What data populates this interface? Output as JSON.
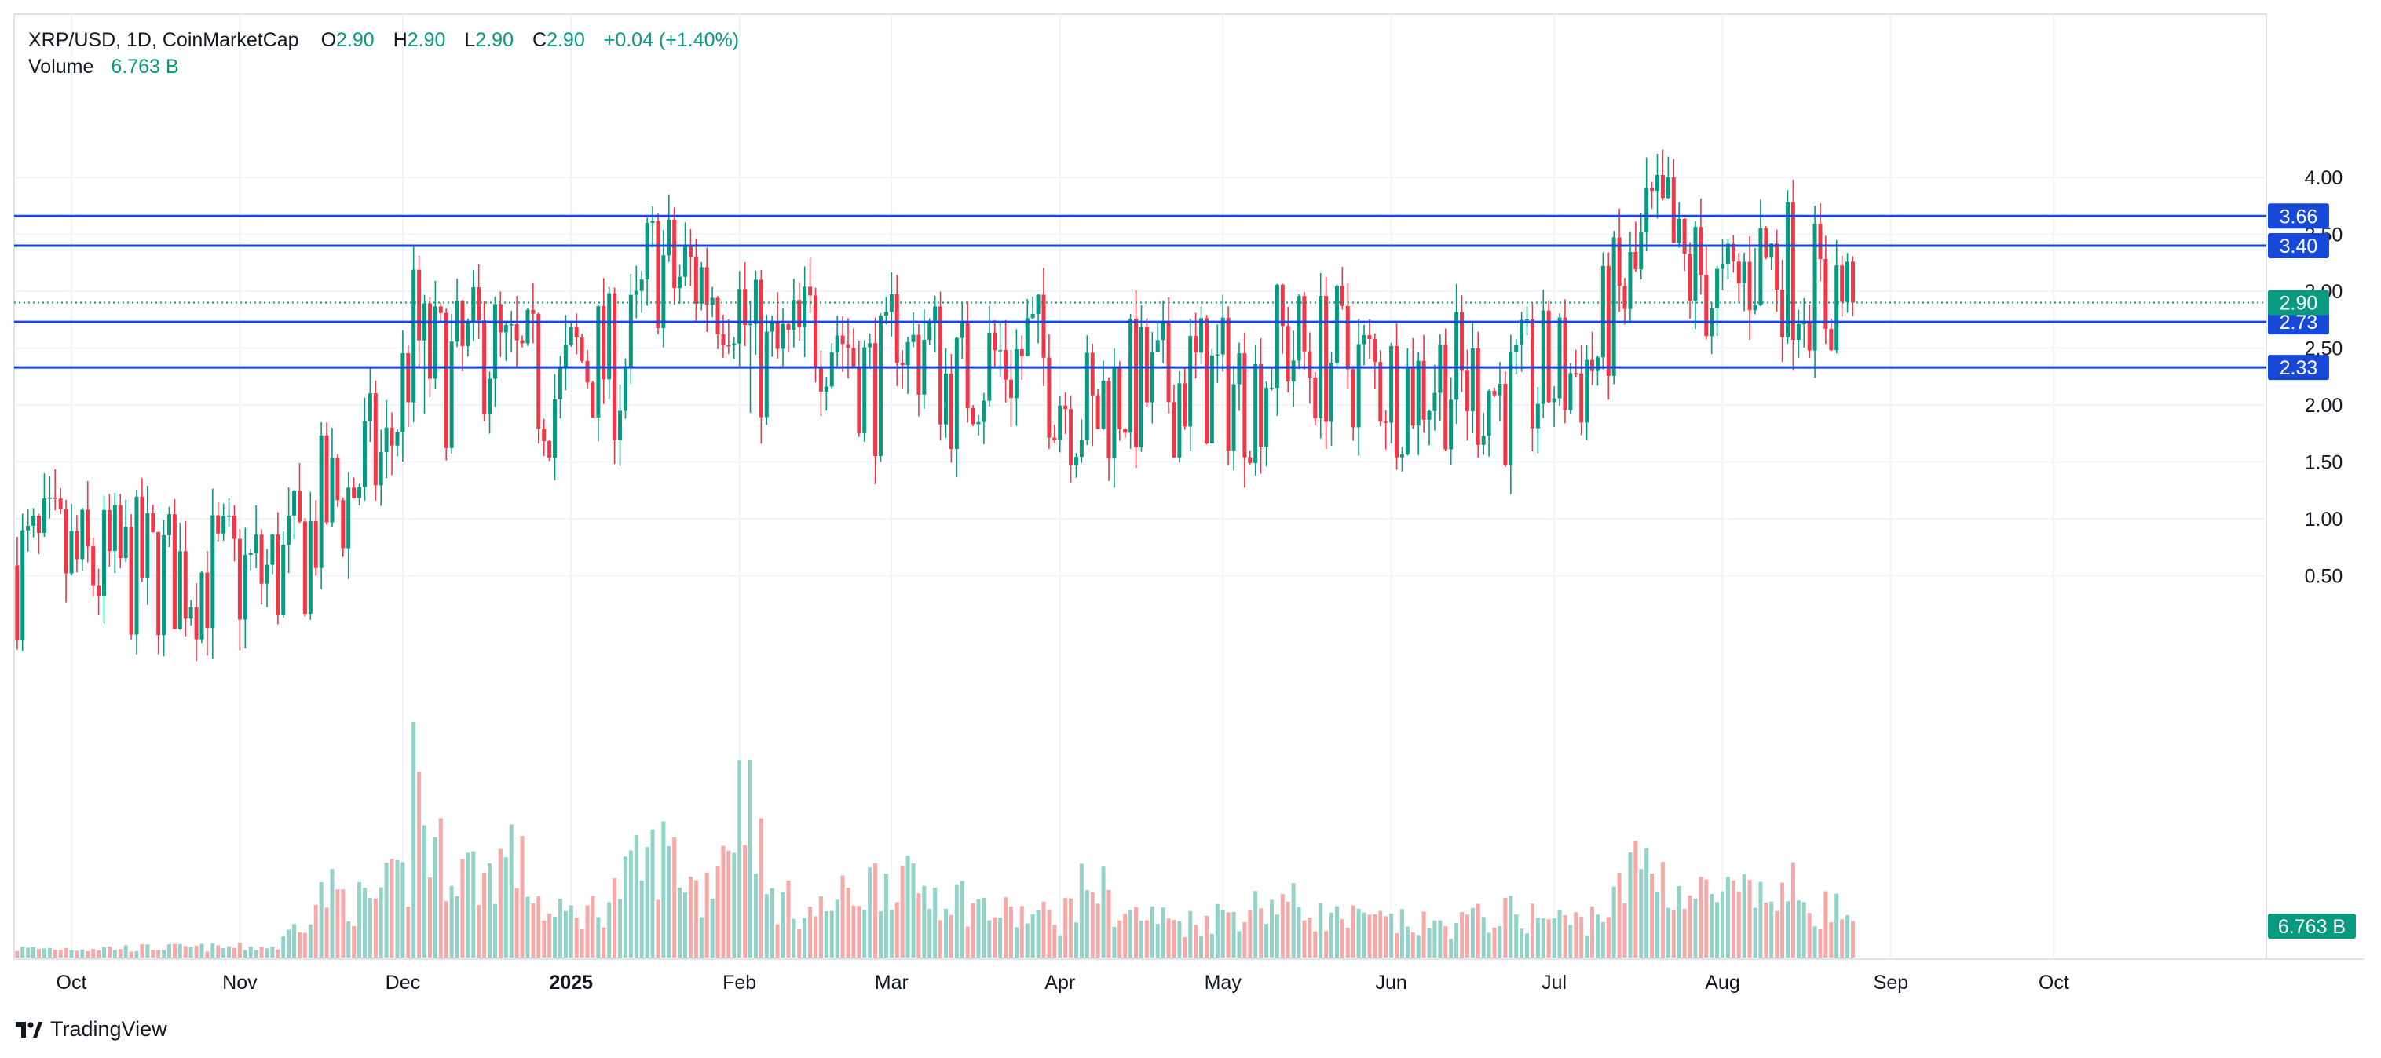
{
  "legend": {
    "symbol": "XRP/USD, 1D, CoinMarketCap",
    "o_label": "O",
    "o_value": "2.90",
    "h_label": "H",
    "h_value": "2.90",
    "l_label": "L",
    "l_value": "2.90",
    "c_label": "C",
    "c_value": "2.90",
    "change": "+0.04 (+1.40%)",
    "volume_label": "Volume",
    "volume_value": "6.763 B"
  },
  "brand": {
    "name": "TradingView",
    "icon": "tradingview-logo-icon"
  },
  "colors": {
    "up": "#089981",
    "down": "#f23645",
    "up_volume": "#92d2c8",
    "down_volume": "#f7a9a7",
    "level_line": "#1848d8",
    "grid": "#f0f3fa"
  },
  "chart_data": {
    "type": "candlestick",
    "title": "XRP/USD, 1D, CoinMarketCap",
    "x_axis": {
      "labels": [
        {
          "text": "Oct",
          "date": "2024-10-01",
          "bold": false
        },
        {
          "text": "Nov",
          "date": "2024-11-01",
          "bold": false
        },
        {
          "text": "Dec",
          "date": "2024-12-01",
          "bold": false
        },
        {
          "text": "2025",
          "date": "2025-01-01",
          "bold": true
        },
        {
          "text": "Feb",
          "date": "2025-02-01",
          "bold": false
        },
        {
          "text": "Mar",
          "date": "2025-03-01",
          "bold": false
        },
        {
          "text": "Apr",
          "date": "2025-04-01",
          "bold": false
        },
        {
          "text": "May",
          "date": "2025-05-01",
          "bold": false
        },
        {
          "text": "Jun",
          "date": "2025-06-01",
          "bold": false
        },
        {
          "text": "Jul",
          "date": "2025-07-01",
          "bold": false
        },
        {
          "text": "Aug",
          "date": "2025-08-01",
          "bold": false
        },
        {
          "text": "Sep",
          "date": "2025-09-01",
          "bold": false
        },
        {
          "text": "Oct",
          "date": "2025-10-01",
          "bold": false
        }
      ],
      "range": [
        "2024-09-21",
        "2025-10-28"
      ]
    },
    "y_axis": {
      "ticks": [
        "0.50",
        "1.00",
        "1.50",
        "2.00",
        "2.50",
        "3.00",
        "3.50",
        "4.00"
      ],
      "range": [
        0.1,
        4.2
      ],
      "position": "right"
    },
    "horizontal_levels": [
      "3.66",
      "3.40",
      "2.73",
      "2.33"
    ],
    "last_price": "2.90",
    "volume_last": "6.763 B",
    "grid": true,
    "price_anchors": [
      [
        "2024-09-21",
        0.59
      ],
      [
        "2024-09-29",
        0.64
      ],
      [
        "2024-10-03",
        0.54
      ],
      [
        "2024-10-15",
        0.54
      ],
      [
        "2024-10-25",
        0.53
      ],
      [
        "2024-11-05",
        0.5
      ],
      [
        "2024-11-09",
        0.56
      ],
      [
        "2024-11-13",
        0.72
      ],
      [
        "2024-11-16",
        1.08
      ],
      [
        "2024-11-21",
        1.2
      ],
      [
        "2024-11-24",
        1.49
      ],
      [
        "2024-11-28",
        1.5
      ],
      [
        "2024-11-30",
        1.95
      ],
      [
        "2024-12-03",
        2.64
      ],
      [
        "2024-12-05",
        2.4
      ],
      [
        "2024-12-07",
        2.34
      ],
      [
        "2024-12-09",
        2.28
      ],
      [
        "2024-12-12",
        2.35
      ],
      [
        "2024-12-17",
        2.56
      ],
      [
        "2024-12-20",
        2.3
      ],
      [
        "2024-12-25",
        2.22
      ],
      [
        "2024-12-30",
        2.06
      ],
      [
        "2025-01-02",
        2.4
      ],
      [
        "2025-01-06",
        2.38
      ],
      [
        "2025-01-10",
        2.28
      ],
      [
        "2025-01-13",
        2.58
      ],
      [
        "2025-01-15",
        3.12
      ],
      [
        "2025-01-17",
        3.28
      ],
      [
        "2025-01-20",
        3.08
      ],
      [
        "2025-01-23",
        3.15
      ],
      [
        "2025-01-26",
        3.1
      ],
      [
        "2025-01-31",
        3.04
      ],
      [
        "2025-02-03",
        2.55
      ],
      [
        "2025-02-06",
        2.35
      ],
      [
        "2025-02-10",
        2.42
      ],
      [
        "2025-02-13",
        2.56
      ],
      [
        "2025-02-15",
        2.72
      ],
      [
        "2025-02-19",
        2.7
      ],
      [
        "2025-02-21",
        2.55
      ],
      [
        "2025-02-25",
        2.2
      ],
      [
        "2025-02-28",
        2.18
      ],
      [
        "2025-03-02",
        2.88
      ],
      [
        "2025-03-04",
        2.38
      ],
      [
        "2025-03-07",
        2.62
      ],
      [
        "2025-03-11",
        2.22
      ],
      [
        "2025-03-13",
        2.15
      ],
      [
        "2025-03-16",
        2.33
      ],
      [
        "2025-03-20",
        2.42
      ],
      [
        "2025-03-24",
        2.4
      ],
      [
        "2025-03-26",
        2.51
      ],
      [
        "2025-03-30",
        2.3
      ],
      [
        "2025-04-02",
        2.1
      ],
      [
        "2025-04-06",
        1.95
      ],
      [
        "2025-04-07",
        1.82
      ],
      [
        "2025-04-09",
        2.05
      ],
      [
        "2025-04-13",
        2.15
      ],
      [
        "2025-04-18",
        2.08
      ],
      [
        "2025-04-22",
        2.18
      ],
      [
        "2025-04-25",
        2.25
      ],
      [
        "2025-05-01",
        2.18
      ],
      [
        "2025-05-07",
        2.13
      ],
      [
        "2025-05-09",
        2.36
      ],
      [
        "2025-05-12",
        2.56
      ],
      [
        "2025-05-14",
        2.5
      ],
      [
        "2025-05-17",
        2.38
      ],
      [
        "2025-05-22",
        2.45
      ],
      [
        "2025-05-26",
        2.32
      ],
      [
        "2025-06-01",
        2.2
      ],
      [
        "2025-06-06",
        2.2
      ],
      [
        "2025-06-10",
        2.3
      ],
      [
        "2025-06-14",
        2.18
      ],
      [
        "2025-06-19",
        2.18
      ],
      [
        "2025-06-23",
        2.02
      ],
      [
        "2025-06-25",
        2.1
      ],
      [
        "2025-07-01",
        2.25
      ],
      [
        "2025-07-05",
        2.28
      ],
      [
        "2025-07-09",
        2.42
      ],
      [
        "2025-07-11",
        2.78
      ],
      [
        "2025-07-14",
        2.95
      ],
      [
        "2025-07-16",
        3.1
      ],
      [
        "2025-07-18",
        3.5
      ],
      [
        "2025-07-21",
        3.48
      ],
      [
        "2025-07-22",
        3.55
      ],
      [
        "2025-07-24",
        3.15
      ],
      [
        "2025-07-28",
        3.15
      ],
      [
        "2025-08-01",
        2.85
      ],
      [
        "2025-08-04",
        3.05
      ],
      [
        "2025-08-07",
        3.3
      ],
      [
        "2025-08-10",
        3.3
      ],
      [
        "2025-08-13",
        3.22
      ],
      [
        "2025-08-15",
        3.12
      ],
      [
        "2025-08-17",
        3.1
      ],
      [
        "2025-08-20",
        2.88
      ],
      [
        "2025-08-22",
        3.05
      ],
      [
        "2025-08-24",
        2.87
      ],
      [
        "2025-08-25",
        2.9
      ]
    ],
    "spike_highs": [
      [
        "2024-12-03",
        2.9
      ],
      [
        "2025-01-16",
        3.4
      ],
      [
        "2025-03-02",
        2.99
      ],
      [
        "2025-07-18",
        3.66
      ],
      [
        "2025-07-22",
        3.65
      ],
      [
        "2025-08-07",
        3.38
      ]
    ],
    "spike_lows": [
      [
        "2024-12-05",
        1.92
      ],
      [
        "2025-02-03",
        1.93
      ],
      [
        "2025-03-10",
        1.95
      ],
      [
        "2025-03-30",
        1.92
      ],
      [
        "2025-04-07",
        1.64
      ],
      [
        "2025-06-22",
        1.91
      ],
      [
        "2025-08-25",
        2.78
      ]
    ],
    "volume_anchors": [
      [
        "2024-09-21",
        1.0
      ],
      [
        "2024-11-08",
        1.2
      ],
      [
        "2024-11-13",
        5.0
      ],
      [
        "2024-11-17",
        7.5
      ],
      [
        "2024-11-24",
        6.0
      ],
      [
        "2024-12-02",
        9.0
      ],
      [
        "2024-12-03",
        27.0
      ],
      [
        "2024-12-04",
        20.0
      ],
      [
        "2024-12-06",
        12.0
      ],
      [
        "2024-12-10",
        11.0
      ],
      [
        "2024-12-16",
        9.0
      ],
      [
        "2024-12-21",
        12.0
      ],
      [
        "2024-12-28",
        4.5
      ],
      [
        "2025-01-06",
        5.5
      ],
      [
        "2025-01-15",
        11.0
      ],
      [
        "2025-01-19",
        12.0
      ],
      [
        "2025-01-25",
        7.0
      ],
      [
        "2025-02-03",
        21.0
      ],
      [
        "2025-02-06",
        7.0
      ],
      [
        "2025-02-15",
        5.0
      ],
      [
        "2025-03-02",
        10.0
      ],
      [
        "2025-03-04",
        8.0
      ],
      [
        "2025-03-11",
        7.5
      ],
      [
        "2025-03-20",
        5.0
      ],
      [
        "2025-04-01",
        4.5
      ],
      [
        "2025-04-07",
        9.0
      ],
      [
        "2025-04-12",
        5.0
      ],
      [
        "2025-04-25",
        4.0
      ],
      [
        "2025-05-12",
        6.5
      ],
      [
        "2025-05-20",
        4.5
      ],
      [
        "2025-06-10",
        3.5
      ],
      [
        "2025-06-22",
        5.0
      ],
      [
        "2025-07-05",
        4.0
      ],
      [
        "2025-07-12",
        6.0
      ],
      [
        "2025-07-15",
        9.5
      ],
      [
        "2025-07-18",
        11.5
      ],
      [
        "2025-07-22",
        8.5
      ],
      [
        "2025-07-25",
        7.0
      ],
      [
        "2025-08-01",
        7.0
      ],
      [
        "2025-08-08",
        6.5
      ],
      [
        "2025-08-14",
        7.5
      ],
      [
        "2025-08-20",
        5.5
      ],
      [
        "2025-08-25",
        5.2
      ]
    ]
  }
}
